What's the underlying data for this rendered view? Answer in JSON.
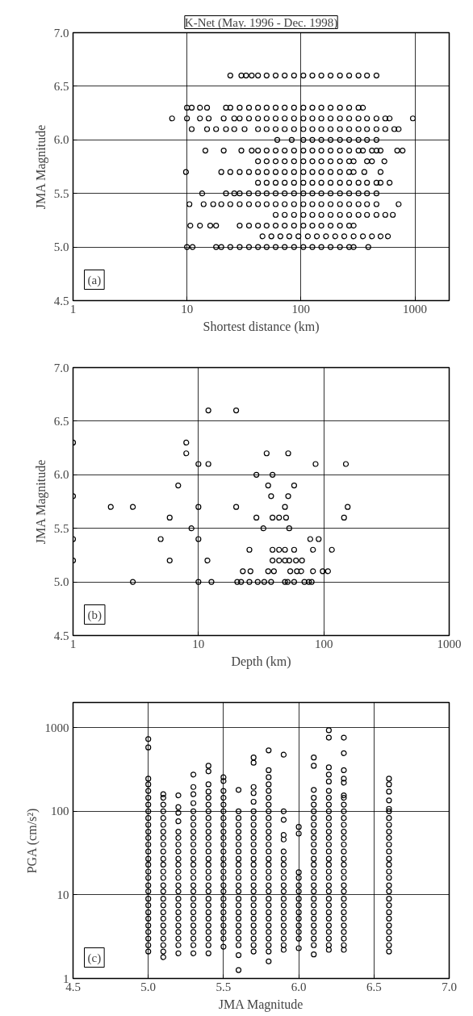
{
  "chart_data": [
    {
      "type": "scatter",
      "title": "K-Net (May. 1996 - Dec. 1998)",
      "xlabel": "Shortest distance (km)",
      "ylabel": "JMA Magnitude",
      "annotations": [
        "(a)"
      ],
      "log": "x",
      "grid": true,
      "marker": "circle",
      "xlim": [
        1,
        2000
      ],
      "ylim": [
        4.5,
        7.0
      ],
      "xticks": [
        1,
        10,
        100,
        1000
      ],
      "yticks": [
        4.5,
        {
          "value": 5,
          "label": "5.0"
        },
        5.5,
        {
          "value": 6,
          "label": "6.0"
        },
        6.5,
        {
          "value": 7,
          "label": "7.0"
        }
      ],
      "series": [
        {
          "color": "#000000",
          "x": [
            24,
            30,
            33,
            37,
            42,
            50,
            60,
            72,
            87,
            105,
            126,
            151,
            182,
            220,
            265,
            320,
            380,
            460
          ],
          "values": [
            6.6,
            6.6,
            6.6,
            6.6,
            6.6,
            6.6,
            6.6,
            6.6,
            6.6,
            6.6,
            6.6,
            6.6,
            6.6,
            6.6,
            6.6,
            6.6,
            6.6,
            6.6
          ]
        },
        {
          "color": "#000000",
          "x": [
            10,
            11,
            13,
            15,
            22,
            24,
            29,
            35,
            42,
            50,
            60,
            72,
            87,
            105,
            126,
            151,
            182,
            220,
            265,
            320,
            350
          ],
          "values": [
            6.3,
            6.3,
            6.3,
            6.3,
            6.3,
            6.3,
            6.3,
            6.3,
            6.3,
            6.3,
            6.3,
            6.3,
            6.3,
            6.3,
            6.3,
            6.3,
            6.3,
            6.3,
            6.3,
            6.3,
            6.3
          ]
        },
        {
          "color": "#000000",
          "x": [
            7.4,
            10,
            13,
            15.5,
            21,
            26,
            29,
            35,
            42,
            50,
            60,
            72,
            87,
            105,
            126,
            151,
            182,
            220,
            265,
            320,
            380,
            460,
            550,
            600,
            960
          ],
          "values": [
            6.2,
            6.2,
            6.2,
            6.2,
            6.2,
            6.2,
            6.2,
            6.2,
            6.2,
            6.2,
            6.2,
            6.2,
            6.2,
            6.2,
            6.2,
            6.2,
            6.2,
            6.2,
            6.2,
            6.2,
            6.2,
            6.2,
            6.2,
            6.2,
            6.2
          ]
        },
        {
          "color": "#000000",
          "x": [
            11,
            15,
            18,
            22,
            26,
            32,
            42,
            50,
            60,
            72,
            87,
            105,
            126,
            151,
            182,
            220,
            265,
            320,
            380,
            460,
            550,
            660,
            720
          ],
          "values": [
            6.1,
            6.1,
            6.1,
            6.1,
            6.1,
            6.1,
            6.1,
            6.1,
            6.1,
            6.1,
            6.1,
            6.1,
            6.1,
            6.1,
            6.1,
            6.1,
            6.1,
            6.1,
            6.1,
            6.1,
            6.1,
            6.1,
            6.1
          ]
        },
        {
          "color": "#000000",
          "x": [
            62,
            83,
            105,
            126,
            151,
            182,
            220,
            265,
            320,
            380,
            460
          ],
          "values": [
            6.0,
            6.0,
            6.0,
            6.0,
            6.0,
            6.0,
            6.0,
            6.0,
            6.0,
            6.0,
            6.0
          ]
        },
        {
          "color": "#000000",
          "x": [
            14.5,
            21,
            30,
            37,
            42,
            50,
            60,
            72,
            87,
            105,
            126,
            151,
            182,
            220,
            265,
            320,
            350,
            420,
            460,
            500,
            700,
            780
          ],
          "values": [
            5.9,
            5.9,
            5.9,
            5.9,
            5.9,
            5.9,
            5.9,
            5.9,
            5.9,
            5.9,
            5.9,
            5.9,
            5.9,
            5.9,
            5.9,
            5.9,
            5.9,
            5.9,
            5.9,
            5.9,
            5.9,
            5.9
          ]
        },
        {
          "color": "#000000",
          "x": [
            42,
            50,
            60,
            72,
            87,
            105,
            126,
            151,
            182,
            220,
            265,
            290,
            380,
            420,
            540
          ],
          "values": [
            5.8,
            5.8,
            5.8,
            5.8,
            5.8,
            5.8,
            5.8,
            5.8,
            5.8,
            5.8,
            5.8,
            5.8,
            5.8,
            5.8,
            5.8
          ]
        },
        {
          "color": "#000000",
          "x": [
            9.8,
            20,
            24,
            29,
            35,
            42,
            50,
            60,
            72,
            87,
            105,
            126,
            151,
            182,
            220,
            265,
            290,
            360,
            500
          ],
          "values": [
            5.7,
            5.7,
            5.7,
            5.7,
            5.7,
            5.7,
            5.7,
            5.7,
            5.7,
            5.7,
            5.7,
            5.7,
            5.7,
            5.7,
            5.7,
            5.7,
            5.7,
            5.7,
            5.7
          ]
        },
        {
          "color": "#000000",
          "x": [
            42,
            50,
            60,
            72,
            87,
            105,
            126,
            151,
            182,
            220,
            265,
            320,
            380,
            460,
            500,
            600
          ],
          "values": [
            5.6,
            5.6,
            5.6,
            5.6,
            5.6,
            5.6,
            5.6,
            5.6,
            5.6,
            5.6,
            5.6,
            5.6,
            5.6,
            5.6,
            5.6,
            5.6
          ]
        },
        {
          "color": "#000000",
          "x": [
            13.6,
            22,
            26,
            29,
            35,
            42,
            50,
            60,
            72,
            87,
            105,
            126,
            151,
            182,
            220,
            265,
            320,
            380,
            460
          ],
          "values": [
            5.5,
            5.5,
            5.5,
            5.5,
            5.5,
            5.5,
            5.5,
            5.5,
            5.5,
            5.5,
            5.5,
            5.5,
            5.5,
            5.5,
            5.5,
            5.5,
            5.5,
            5.5,
            5.5
          ]
        },
        {
          "color": "#000000",
          "x": [
            10.5,
            14,
            17,
            20,
            24,
            29,
            35,
            42,
            50,
            60,
            72,
            87,
            105,
            126,
            151,
            182,
            220,
            265,
            320,
            380,
            460,
            720
          ],
          "values": [
            5.4,
            5.4,
            5.4,
            5.4,
            5.4,
            5.4,
            5.4,
            5.4,
            5.4,
            5.4,
            5.4,
            5.4,
            5.4,
            5.4,
            5.4,
            5.4,
            5.4,
            5.4,
            5.4,
            5.4,
            5.4,
            5.4
          ]
        },
        {
          "color": "#000000",
          "x": [
            60,
            72,
            87,
            105,
            126,
            151,
            182,
            220,
            265,
            320,
            380,
            460,
            550,
            640
          ],
          "values": [
            5.3,
            5.3,
            5.3,
            5.3,
            5.3,
            5.3,
            5.3,
            5.3,
            5.3,
            5.3,
            5.3,
            5.3,
            5.3,
            5.3
          ]
        },
        {
          "color": "#000000",
          "x": [
            10.7,
            13,
            16,
            18,
            29,
            35,
            42,
            50,
            60,
            72,
            87,
            105,
            126,
            151,
            182,
            220,
            265,
            290
          ],
          "values": [
            5.2,
            5.2,
            5.2,
            5.2,
            5.2,
            5.2,
            5.2,
            5.2,
            5.2,
            5.2,
            5.2,
            5.2,
            5.2,
            5.2,
            5.2,
            5.2,
            5.2,
            5.2
          ]
        },
        {
          "color": "#000000",
          "x": [
            46,
            55,
            66,
            79,
            95,
            115,
            138,
            166,
            200,
            240,
            290,
            350,
            420,
            500,
            580
          ],
          "values": [
            5.1,
            5.1,
            5.1,
            5.1,
            5.1,
            5.1,
            5.1,
            5.1,
            5.1,
            5.1,
            5.1,
            5.1,
            5.1,
            5.1,
            5.1
          ]
        },
        {
          "color": "#000000",
          "x": [
            10,
            11.2,
            18,
            20,
            24,
            29,
            35,
            42,
            50,
            60,
            72,
            87,
            105,
            126,
            151,
            182,
            220,
            265,
            290,
            390
          ],
          "values": [
            5.0,
            5.0,
            5.0,
            5.0,
            5.0,
            5.0,
            5.0,
            5.0,
            5.0,
            5.0,
            5.0,
            5.0,
            5.0,
            5.0,
            5.0,
            5.0,
            5.0,
            5.0,
            5.0,
            5.0
          ]
        }
      ]
    },
    {
      "type": "scatter",
      "xlabel": "Depth (km)",
      "ylabel": "JMA Magnitude",
      "annotations": [
        "(b)"
      ],
      "log": "x",
      "grid": true,
      "marker": "circle",
      "xlim": [
        1,
        1000
      ],
      "ylim": [
        4.5,
        7.0
      ],
      "xticks": [
        1,
        10,
        100,
        1000
      ],
      "yticks": [
        4.5,
        {
          "value": 5,
          "label": "5.0"
        },
        5.5,
        {
          "value": 6,
          "label": "6.0"
        },
        6.5,
        {
          "value": 7,
          "label": "7.0"
        }
      ],
      "series": [
        {
          "color": "#000000",
          "x": [
            12,
            20
          ],
          "values": [
            6.6,
            6.6
          ]
        },
        {
          "color": "#000000",
          "x": [
            1,
            8
          ],
          "values": [
            6.3,
            6.3
          ]
        },
        {
          "color": "#000000",
          "x": [
            8,
            35,
            52
          ],
          "values": [
            6.2,
            6.2,
            6.2
          ]
        },
        {
          "color": "#000000",
          "x": [
            10,
            12,
            86,
            150
          ],
          "values": [
            6.1,
            6.1,
            6.1,
            6.1
          ]
        },
        {
          "color": "#000000",
          "x": [
            29,
            39
          ],
          "values": [
            6.0,
            6.0
          ]
        },
        {
          "color": "#000000",
          "x": [
            6.9,
            36,
            58
          ],
          "values": [
            5.9,
            5.9,
            5.9
          ]
        },
        {
          "color": "#000000",
          "x": [
            1,
            38,
            52
          ],
          "values": [
            5.8,
            5.8,
            5.8
          ]
        },
        {
          "color": "#000000",
          "x": [
            2,
            3,
            10,
            20,
            49,
            155
          ],
          "values": [
            5.7,
            5.7,
            5.7,
            5.7,
            5.7,
            5.7
          ]
        },
        {
          "color": "#000000",
          "x": [
            5.9,
            29,
            39,
            44,
            50,
            145
          ],
          "values": [
            5.6,
            5.6,
            5.6,
            5.6,
            5.6,
            5.6
          ]
        },
        {
          "color": "#000000",
          "x": [
            8.8,
            33,
            53
          ],
          "values": [
            5.5,
            5.5,
            5.5
          ]
        },
        {
          "color": "#000000",
          "x": [
            1,
            5,
            10,
            78,
            91
          ],
          "values": [
            5.4,
            5.4,
            5.4,
            5.4,
            5.4
          ]
        },
        {
          "color": "#000000",
          "x": [
            25.5,
            39,
            44,
            49,
            58,
            82,
            116
          ],
          "values": [
            5.3,
            5.3,
            5.3,
            5.3,
            5.3,
            5.3,
            5.3
          ]
        },
        {
          "color": "#000000",
          "x": [
            1,
            5.9,
            11.8,
            39,
            44,
            49,
            53,
            60,
            67
          ],
          "values": [
            5.2,
            5.2,
            5.2,
            5.2,
            5.2,
            5.2,
            5.2,
            5.2,
            5.2
          ]
        },
        {
          "color": "#000000",
          "x": [
            22.6,
            26,
            36,
            40,
            54,
            61,
            66,
            82,
            98,
            108
          ],
          "values": [
            5.1,
            5.1,
            5.1,
            5.1,
            5.1,
            5.1,
            5.1,
            5.1,
            5.1,
            5.1
          ]
        },
        {
          "color": "#000000",
          "x": [
            3,
            10,
            12.7,
            20.4,
            21.9,
            25.5,
            29.7,
            33.5,
            38,
            49,
            51.5,
            58,
            70,
            76,
            80
          ],
          "values": [
            5.0,
            5.0,
            5.0,
            5.0,
            5.0,
            5.0,
            5.0,
            5.0,
            5.0,
            5.0,
            5.0,
            5.0,
            5.0,
            5.0,
            5.0
          ]
        }
      ]
    },
    {
      "type": "scatter",
      "xlabel": "JMA Magnitude",
      "ylabel": "PGA (cm/s²)",
      "annotations": [
        "(c)"
      ],
      "log": "y",
      "grid": true,
      "marker": "circle",
      "xlim": [
        4.5,
        7.0
      ],
      "ylim": [
        1,
        2000
      ],
      "xticks": [
        4.5,
        {
          "value": 5,
          "label": "5.0"
        },
        5.5,
        {
          "value": 6,
          "label": "6.0"
        },
        6.5,
        {
          "value": 7,
          "label": "7.0"
        }
      ],
      "yticks": [
        1,
        10,
        100,
        1000
      ],
      "series": [
        {
          "color": "#000000",
          "x": [
            5.0,
            5.0,
            5.0,
            5.0,
            5.0,
            5.0,
            5.0,
            5.0,
            5.0,
            5.0,
            5.0,
            5.0,
            5.0,
            5.0,
            5.0,
            5.0,
            5.0,
            5.0,
            5.0,
            5.0,
            5.0,
            5.0,
            5.0,
            5.0,
            5.0,
            5.0,
            5.0,
            5.0,
            5.0
          ],
          "values": [
            2.1,
            2.5,
            3,
            3.6,
            4.3,
            5.2,
            6.2,
            7.5,
            9,
            11,
            13,
            16,
            19,
            23,
            27,
            33,
            40,
            48,
            57,
            69,
            83,
            100,
            120,
            145,
            175,
            210,
            245,
            580,
            730
          ]
        },
        {
          "color": "#000000",
          "x": [
            5.1,
            5.1,
            5.1,
            5.1,
            5.1,
            5.1,
            5.1,
            5.1,
            5.1,
            5.1,
            5.1,
            5.1,
            5.1,
            5.1,
            5.1,
            5.1,
            5.1,
            5.1,
            5.1,
            5.1,
            5.1,
            5.1,
            5.1,
            5.1,
            5.1,
            5.1
          ],
          "values": [
            1.8,
            2.1,
            2.5,
            3,
            3.6,
            4.3,
            5.2,
            6.2,
            7.5,
            9,
            11,
            13,
            16,
            19,
            23,
            27,
            33,
            40,
            48,
            57,
            69,
            83,
            100,
            120,
            145,
            160
          ]
        },
        {
          "color": "#000000",
          "x": [
            5.2,
            5.2,
            5.2,
            5.2,
            5.2,
            5.2,
            5.2,
            5.2,
            5.2,
            5.2,
            5.2,
            5.2,
            5.2,
            5.2,
            5.2,
            5.2,
            5.2,
            5.2,
            5.2,
            5.2,
            5.2,
            5.2,
            5.2
          ],
          "values": [
            2.0,
            2.5,
            3,
            3.6,
            4.3,
            5.2,
            6.2,
            7.5,
            9,
            11,
            13,
            16,
            19,
            23,
            27,
            33,
            40,
            48,
            57,
            76,
            96,
            112,
            155
          ]
        },
        {
          "color": "#000000",
          "x": [
            5.3,
            5.3,
            5.3,
            5.3,
            5.3,
            5.3,
            5.3,
            5.3,
            5.3,
            5.3,
            5.3,
            5.3,
            5.3,
            5.3,
            5.3,
            5.3,
            5.3,
            5.3,
            5.3,
            5.3,
            5.3,
            5.3,
            5.3,
            5.3,
            5.3,
            5.3
          ],
          "values": [
            2.0,
            2.5,
            3,
            3.6,
            4.3,
            5.2,
            6.2,
            7.5,
            9,
            11,
            13,
            16,
            19,
            23,
            27,
            33,
            40,
            48,
            57,
            69,
            83,
            100,
            125,
            160,
            195,
            275
          ]
        },
        {
          "color": "#000000",
          "x": [
            5.4,
            5.4,
            5.4,
            5.4,
            5.4,
            5.4,
            5.4,
            5.4,
            5.4,
            5.4,
            5.4,
            5.4,
            5.4,
            5.4,
            5.4,
            5.4,
            5.4,
            5.4,
            5.4,
            5.4,
            5.4,
            5.4,
            5.4,
            5.4,
            5.4,
            5.4,
            5.4,
            5.4
          ],
          "values": [
            2.0,
            2.5,
            3,
            3.6,
            4.3,
            5.2,
            6.2,
            7.5,
            9,
            11,
            13,
            16,
            19,
            23,
            27,
            33,
            40,
            48,
            57,
            69,
            83,
            100,
            120,
            145,
            172,
            210,
            300,
            350
          ]
        },
        {
          "color": "#000000",
          "x": [
            5.5,
            5.5,
            5.5,
            5.5,
            5.5,
            5.5,
            5.5,
            5.5,
            5.5,
            5.5,
            5.5,
            5.5,
            5.5,
            5.5,
            5.5,
            5.5,
            5.5,
            5.5,
            5.5,
            5.5,
            5.5,
            5.5,
            5.5,
            5.5,
            5.5,
            5.5
          ],
          "values": [
            2.4,
            3,
            3.6,
            4.3,
            5.2,
            6.2,
            7.5,
            9,
            11,
            13,
            16,
            19,
            23,
            27,
            33,
            40,
            48,
            57,
            69,
            83,
            100,
            120,
            145,
            175,
            230,
            255
          ]
        },
        {
          "color": "#000000",
          "x": [
            5.6,
            5.6,
            5.6,
            5.6,
            5.6,
            5.6,
            5.6,
            5.6,
            5.6,
            5.6,
            5.6,
            5.6,
            5.6,
            5.6,
            5.6,
            5.6,
            5.6,
            5.6,
            5.6,
            5.6,
            5.6,
            5.6,
            5.6,
            5.6
          ],
          "values": [
            1.26,
            1.9,
            2.5,
            3,
            3.6,
            4.3,
            5.2,
            6.2,
            7.5,
            9,
            11,
            13,
            16,
            19,
            23,
            27,
            33,
            40,
            48,
            57,
            69,
            83,
            100,
            180
          ]
        },
        {
          "color": "#000000",
          "x": [
            5.7,
            5.7,
            5.7,
            5.7,
            5.7,
            5.7,
            5.7,
            5.7,
            5.7,
            5.7,
            5.7,
            5.7,
            5.7,
            5.7,
            5.7,
            5.7,
            5.7,
            5.7,
            5.7,
            5.7,
            5.7,
            5.7,
            5.7,
            5.7,
            5.7,
            5.7,
            5.7
          ],
          "values": [
            2.1,
            2.5,
            3,
            3.6,
            4.3,
            5.2,
            6.2,
            7.5,
            9,
            11,
            13,
            16,
            19,
            23,
            27,
            33,
            40,
            48,
            57,
            69,
            83,
            100,
            130,
            165,
            195,
            380,
            440
          ]
        },
        {
          "color": "#000000",
          "x": [
            5.8,
            5.8,
            5.8,
            5.8,
            5.8,
            5.8,
            5.8,
            5.8,
            5.8,
            5.8,
            5.8,
            5.8,
            5.8,
            5.8,
            5.8,
            5.8,
            5.8,
            5.8,
            5.8,
            5.8,
            5.8,
            5.8,
            5.8,
            5.8,
            5.8,
            5.8,
            5.8,
            5.8,
            5.8,
            5.8
          ],
          "values": [
            1.6,
            2.1,
            2.5,
            3,
            3.6,
            4.3,
            5.2,
            6.2,
            7.5,
            9,
            11,
            13,
            16,
            19,
            23,
            27,
            33,
            40,
            48,
            57,
            69,
            83,
            100,
            120,
            145,
            175,
            210,
            255,
            310,
            535
          ]
        },
        {
          "color": "#000000",
          "x": [
            5.9,
            5.9,
            5.9,
            5.9,
            5.9,
            5.9,
            5.9,
            5.9,
            5.9,
            5.9,
            5.9,
            5.9,
            5.9,
            5.9,
            5.9,
            5.9,
            5.9,
            5.9,
            5.9,
            5.9,
            5.9
          ],
          "values": [
            2.2,
            2.5,
            3,
            3.6,
            4.3,
            5.2,
            6.2,
            7.5,
            9,
            11,
            13,
            16,
            19,
            23,
            27,
            33,
            46,
            52,
            79,
            100,
            475
          ]
        },
        {
          "color": "#000000",
          "x": [
            6.0,
            6.0,
            6.0,
            6.0,
            6.0,
            6.0,
            6.0,
            6.0,
            6.0,
            6.0,
            6.0,
            6.0,
            6.0,
            6.0
          ],
          "values": [
            2.3,
            3,
            3.6,
            4.3,
            5.2,
            6.2,
            7.5,
            9,
            11,
            13,
            16,
            18.6,
            54,
            65
          ]
        },
        {
          "color": "#000000",
          "x": [
            6.1,
            6.1,
            6.1,
            6.1,
            6.1,
            6.1,
            6.1,
            6.1,
            6.1,
            6.1,
            6.1,
            6.1,
            6.1,
            6.1,
            6.1,
            6.1,
            6.1,
            6.1,
            6.1,
            6.1,
            6.1,
            6.1,
            6.1,
            6.1,
            6.1,
            6.1,
            6.1
          ],
          "values": [
            1.94,
            2.5,
            3,
            3.6,
            4.3,
            5.2,
            6.2,
            7.5,
            9,
            11,
            13,
            16,
            19,
            23,
            27,
            33,
            40,
            48,
            57,
            69,
            83,
            100,
            120,
            145,
            180,
            350,
            440
          ]
        },
        {
          "color": "#000000",
          "x": [
            6.2,
            6.2,
            6.2,
            6.2,
            6.2,
            6.2,
            6.2,
            6.2,
            6.2,
            6.2,
            6.2,
            6.2,
            6.2,
            6.2,
            6.2,
            6.2,
            6.2,
            6.2,
            6.2,
            6.2,
            6.2,
            6.2,
            6.2,
            6.2,
            6.2,
            6.2,
            6.2,
            6.2,
            6.2,
            6.2
          ],
          "values": [
            2.2,
            2.5,
            3,
            3.6,
            4.3,
            5.2,
            6.2,
            7.5,
            9,
            11,
            13,
            16,
            19,
            23,
            27,
            33,
            40,
            48,
            57,
            69,
            83,
            100,
            120,
            145,
            175,
            227,
            275,
            335,
            760,
            930
          ]
        },
        {
          "color": "#000000",
          "x": [
            6.3,
            6.3,
            6.3,
            6.3,
            6.3,
            6.3,
            6.3,
            6.3,
            6.3,
            6.3,
            6.3,
            6.3,
            6.3,
            6.3,
            6.3,
            6.3,
            6.3,
            6.3,
            6.3,
            6.3,
            6.3,
            6.3,
            6.3,
            6.3,
            6.3,
            6.3,
            6.3,
            6.3,
            6.3,
            6.3
          ],
          "values": [
            2.2,
            2.5,
            3,
            3.6,
            4.3,
            5.2,
            6.2,
            7.5,
            9,
            11,
            13,
            16,
            19,
            23,
            27,
            33,
            40,
            48,
            57,
            69,
            83,
            100,
            120,
            145,
            155,
            220,
            245,
            310,
            495,
            760
          ]
        },
        {
          "color": "#000000",
          "x": [
            6.6,
            6.6,
            6.6,
            6.6,
            6.6,
            6.6,
            6.6,
            6.6,
            6.6,
            6.6,
            6.6,
            6.6,
            6.6,
            6.6,
            6.6,
            6.6,
            6.6,
            6.6,
            6.6,
            6.6,
            6.6,
            6.6,
            6.6,
            6.6,
            6.6,
            6.6,
            6.6
          ],
          "values": [
            2.1,
            2.5,
            3,
            3.6,
            4.3,
            5.2,
            6.2,
            7.5,
            9,
            11,
            13,
            16,
            19,
            23,
            27,
            33,
            40,
            48,
            57,
            69,
            83,
            100,
            107,
            135,
            172,
            210,
            245
          ]
        }
      ]
    }
  ]
}
